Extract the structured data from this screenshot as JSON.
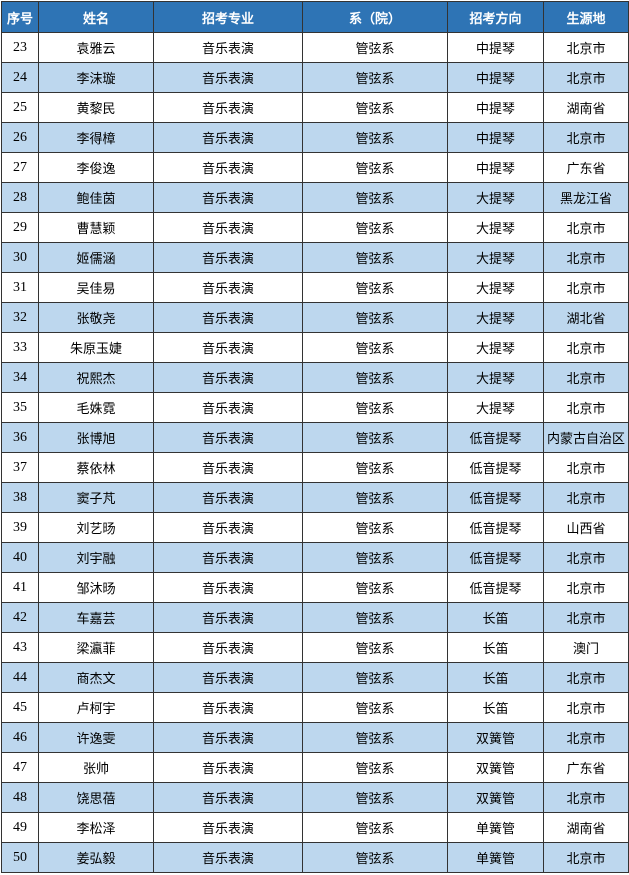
{
  "table": {
    "header": [
      "序号",
      "姓名",
      "招考专业",
      "系（院）",
      "招考方向",
      "生源地"
    ],
    "rows": [
      [
        23,
        "袁雅云",
        "音乐表演",
        "管弦系",
        "中提琴",
        "北京市"
      ],
      [
        24,
        "李沫璇",
        "音乐表演",
        "管弦系",
        "中提琴",
        "北京市"
      ],
      [
        25,
        "黄黎民",
        "音乐表演",
        "管弦系",
        "中提琴",
        "湖南省"
      ],
      [
        26,
        "李得樟",
        "音乐表演",
        "管弦系",
        "中提琴",
        "北京市"
      ],
      [
        27,
        "李俊逸",
        "音乐表演",
        "管弦系",
        "中提琴",
        "广东省"
      ],
      [
        28,
        "鲍佳茵",
        "音乐表演",
        "管弦系",
        "大提琴",
        "黑龙江省"
      ],
      [
        29,
        "曹慧颖",
        "音乐表演",
        "管弦系",
        "大提琴",
        "北京市"
      ],
      [
        30,
        "姬儒涵",
        "音乐表演",
        "管弦系",
        "大提琴",
        "北京市"
      ],
      [
        31,
        "吴佳易",
        "音乐表演",
        "管弦系",
        "大提琴",
        "北京市"
      ],
      [
        32,
        "张敬尧",
        "音乐表演",
        "管弦系",
        "大提琴",
        "湖北省"
      ],
      [
        33,
        "朱原玉婕",
        "音乐表演",
        "管弦系",
        "大提琴",
        "北京市"
      ],
      [
        34,
        "祝熙杰",
        "音乐表演",
        "管弦系",
        "大提琴",
        "北京市"
      ],
      [
        35,
        "毛姝霓",
        "音乐表演",
        "管弦系",
        "大提琴",
        "北京市"
      ],
      [
        36,
        "张博旭",
        "音乐表演",
        "管弦系",
        "低音提琴",
        "内蒙古自治区"
      ],
      [
        37,
        "蔡依林",
        "音乐表演",
        "管弦系",
        "低音提琴",
        "北京市"
      ],
      [
        38,
        "窦子芃",
        "音乐表演",
        "管弦系",
        "低音提琴",
        "北京市"
      ],
      [
        39,
        "刘艺旸",
        "音乐表演",
        "管弦系",
        "低音提琴",
        "山西省"
      ],
      [
        40,
        "刘宇融",
        "音乐表演",
        "管弦系",
        "低音提琴",
        "北京市"
      ],
      [
        41,
        "邹沐旸",
        "音乐表演",
        "管弦系",
        "低音提琴",
        "北京市"
      ],
      [
        42,
        "车嘉芸",
        "音乐表演",
        "管弦系",
        "长笛",
        "北京市"
      ],
      [
        43,
        "梁瀛菲",
        "音乐表演",
        "管弦系",
        "长笛",
        "澳门"
      ],
      [
        44,
        "商杰文",
        "音乐表演",
        "管弦系",
        "长笛",
        "北京市"
      ],
      [
        45,
        "卢柯宇",
        "音乐表演",
        "管弦系",
        "长笛",
        "北京市"
      ],
      [
        46,
        "许逸雯",
        "音乐表演",
        "管弦系",
        "双簧管",
        "北京市"
      ],
      [
        47,
        "张帅",
        "音乐表演",
        "管弦系",
        "双簧管",
        "广东省"
      ],
      [
        48,
        "饶思蓓",
        "音乐表演",
        "管弦系",
        "双簧管",
        "北京市"
      ],
      [
        49,
        "李松泽",
        "音乐表演",
        "管弦系",
        "单簧管",
        "湖南省"
      ],
      [
        50,
        "姜弘毅",
        "音乐表演",
        "管弦系",
        "单簧管",
        "北京市"
      ]
    ]
  }
}
